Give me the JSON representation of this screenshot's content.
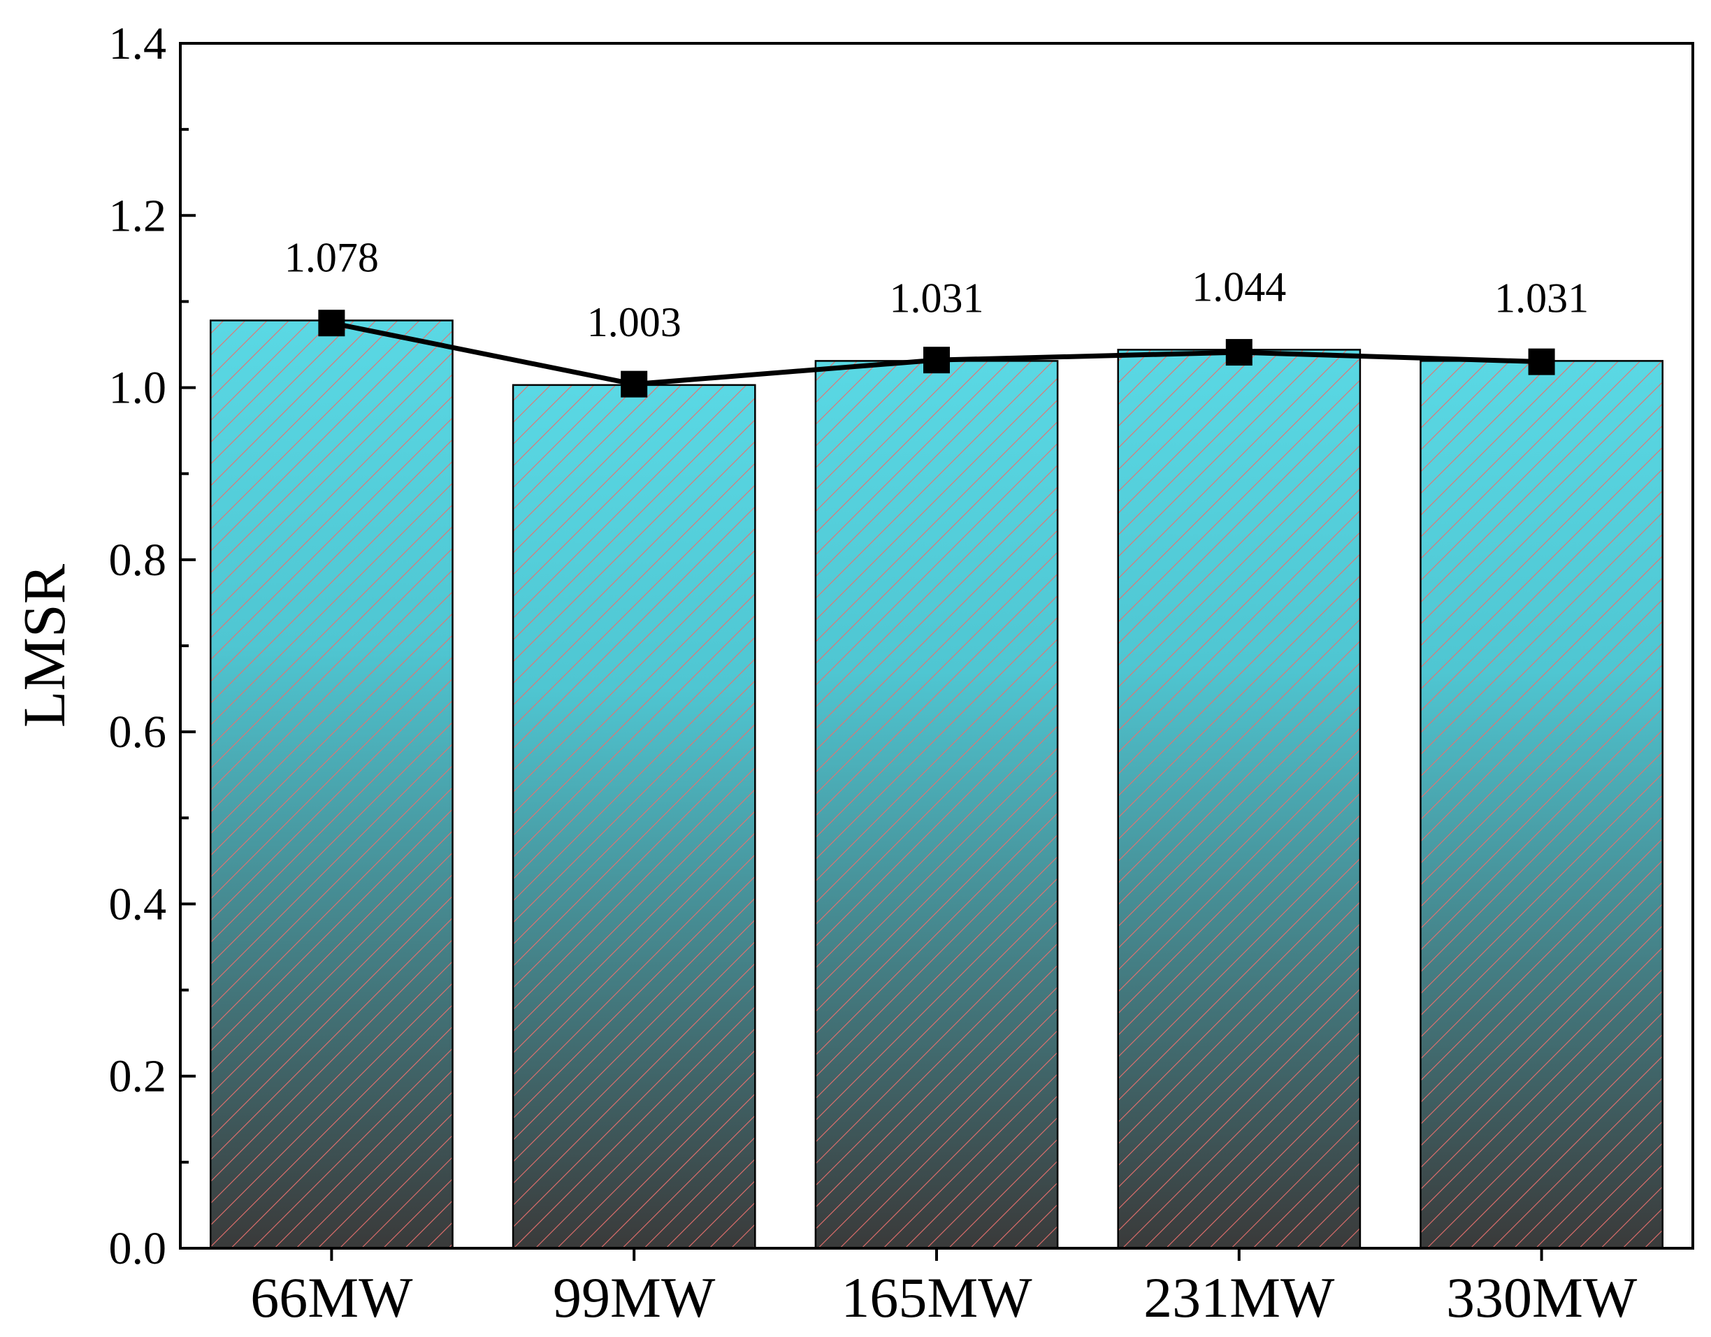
{
  "chart_data": {
    "type": "bar",
    "categories": [
      "66MW",
      "99MW",
      "165MW",
      "231MW",
      "330MW"
    ],
    "values": [
      1.078,
      1.003,
      1.031,
      1.044,
      1.031
    ],
    "line_values": [
      1.075,
      1.004,
      1.032,
      1.041,
      1.03
    ],
    "data_labels": [
      "1.078",
      "1.003",
      "1.031",
      "1.044",
      "1.031"
    ],
    "title": "",
    "xlabel": "",
    "ylabel": "LMSR",
    "ylim": [
      0,
      1.4
    ],
    "yticks": [
      0.0,
      0.2,
      0.4,
      0.6,
      0.8,
      1.0,
      1.2,
      1.4
    ],
    "ytick_labels": [
      "0.0",
      "0.2",
      "0.4",
      "0.6",
      "0.8",
      "1.0",
      "1.2",
      "1.4"
    ],
    "grid": false,
    "legend": "none",
    "bar_fill_top": "#5ad8e4",
    "bar_fill_bottom": "#3a3a3a",
    "hatch_color": "#e8706e",
    "line_color": "#000000",
    "marker": "square"
  }
}
